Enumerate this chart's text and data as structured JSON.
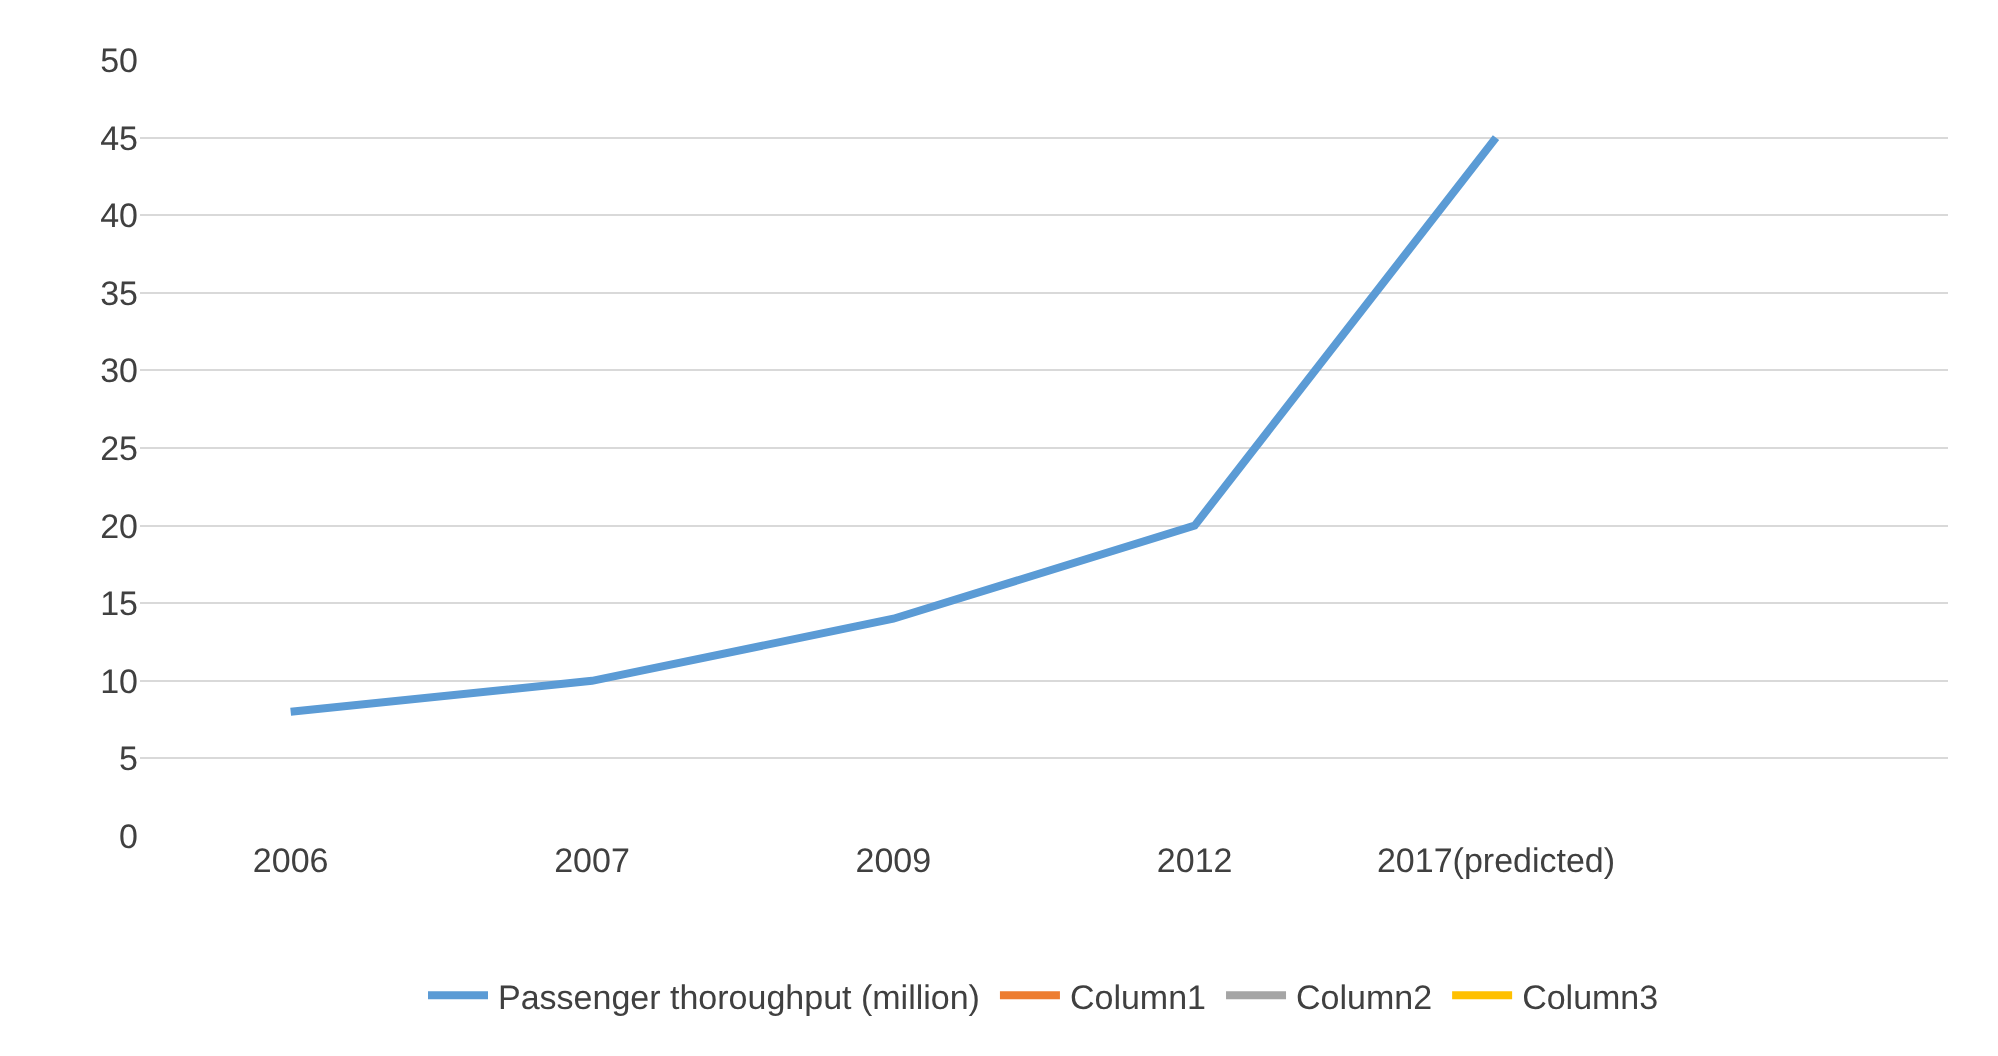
{
  "chart_data": {
    "type": "line",
    "categories": [
      "2006",
      "2007",
      "2009",
      "2012",
      "2017(predicted)",
      null
    ],
    "series": [
      {
        "name": "Passenger thoroughput (million)",
        "color": "#5b9bd5",
        "values": [
          8,
          10,
          14,
          20,
          45,
          null
        ]
      },
      {
        "name": "Column1",
        "color": "#ed7d31",
        "values": [
          null,
          null,
          null,
          null,
          null,
          null
        ]
      },
      {
        "name": "Column2",
        "color": "#a5a5a5",
        "values": [
          null,
          null,
          null,
          null,
          null,
          null
        ]
      },
      {
        "name": "Column3",
        "color": "#ffc000",
        "values": [
          null,
          null,
          null,
          null,
          null,
          null
        ]
      }
    ],
    "ylim": [
      0,
      50
    ],
    "yticks": [
      0,
      5,
      10,
      15,
      20,
      25,
      30,
      35,
      40,
      45,
      50
    ],
    "grid": "y",
    "legend": "bottom",
    "marker": "none",
    "line_style": "solid"
  }
}
